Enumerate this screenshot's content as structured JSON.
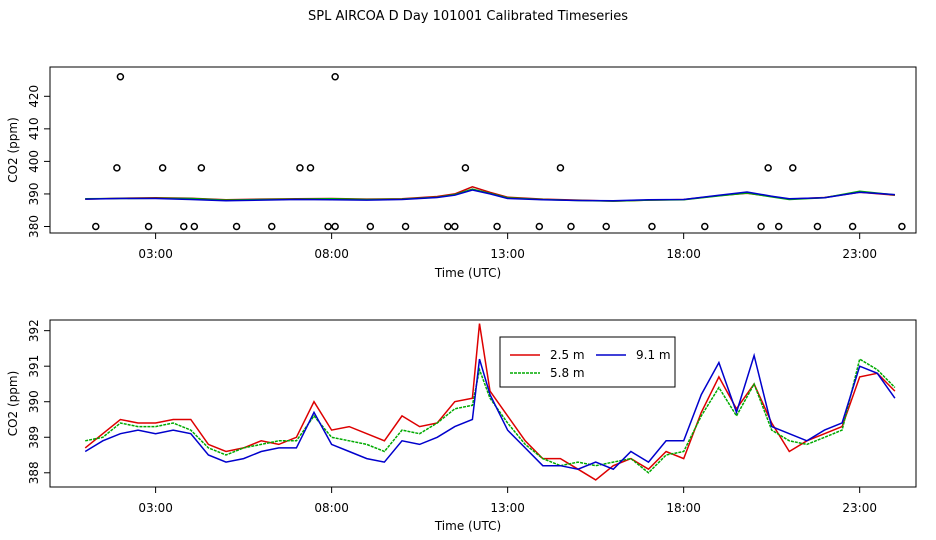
{
  "title": "SPL AIRCOA D  Day 101001  Calibrated Timeseries",
  "chart_data": [
    {
      "type": "scatter",
      "xlabel": "Time (UTC)",
      "ylabel": "CO2 (ppm)",
      "x_ticks": [
        "03:00",
        "08:00",
        "13:00",
        "18:00",
        "23:00"
      ],
      "y_ticks": [
        "380",
        "390",
        "400",
        "410",
        "420"
      ],
      "xlim": [
        0,
        24.6
      ],
      "ylim": [
        378,
        429
      ],
      "series": [
        {
          "color": "#cc0000",
          "x": [
            1,
            2,
            3,
            4,
            5,
            6,
            7,
            8,
            9,
            10,
            11,
            11.5,
            12,
            12.5,
            13,
            14,
            15,
            16,
            17,
            18,
            19,
            19.8,
            20.5,
            21,
            22,
            23,
            24
          ],
          "y": [
            388.4,
            388.7,
            388.8,
            388.7,
            388.2,
            388.4,
            388.5,
            388.6,
            388.4,
            388.5,
            389.2,
            390,
            392.2,
            390.5,
            389,
            388.4,
            388.1,
            387.8,
            388.1,
            388.3,
            389.5,
            390.2,
            389.2,
            388.4,
            388.9,
            390.5,
            389.6
          ]
        },
        {
          "color": "#00aa00",
          "x": [
            1,
            2,
            3,
            4,
            5,
            6,
            7,
            8,
            9,
            10,
            11,
            11.5,
            12,
            12.5,
            13,
            14,
            15,
            16,
            17,
            18,
            19,
            19.8,
            20.5,
            21,
            22,
            23,
            24
          ],
          "y": [
            388.5,
            388.6,
            388.7,
            388.6,
            388.1,
            388.3,
            388.4,
            388.5,
            388.3,
            388.4,
            389,
            389.8,
            391.5,
            390.2,
            388.8,
            388.3,
            388,
            387.8,
            388.1,
            388.2,
            389.4,
            390.3,
            389.1,
            388.3,
            388.8,
            390.8,
            389.7
          ]
        },
        {
          "color": "#0000cc",
          "x": [
            1,
            2,
            3,
            4,
            5,
            6,
            7,
            8,
            9,
            10,
            11,
            11.5,
            12,
            12.5,
            13,
            14,
            15,
            16,
            17,
            18,
            19,
            19.8,
            20.5,
            21,
            22,
            23,
            24
          ],
          "y": [
            388.4,
            388.6,
            388.6,
            388.3,
            387.9,
            388.1,
            388.3,
            388.2,
            388.1,
            388.3,
            388.9,
            389.6,
            391.2,
            390,
            388.6,
            388.2,
            388,
            387.9,
            388.2,
            388.3,
            389.6,
            390.6,
            389.3,
            388.5,
            388.8,
            390.5,
            389.8
          ]
        }
      ],
      "markers": {
        "x": [
          1.3,
          2.8,
          3.8,
          4.1,
          5.3,
          6.3,
          7.9,
          8.1,
          9.1,
          10.1,
          11.3,
          11.5,
          12.7,
          13.9,
          14.8,
          15.8,
          17.1,
          18.6,
          20.2,
          20.7,
          21.8,
          22.8,
          24.2,
          4.3,
          7.1,
          7.4,
          11.8,
          20.4,
          21.1,
          14.5,
          1.9,
          3.2,
          2.0,
          8.1
        ],
        "y": [
          380,
          380,
          380,
          380,
          380,
          380,
          380,
          380,
          380,
          380,
          380,
          380,
          380,
          380,
          380,
          380,
          380,
          380,
          380,
          380,
          380,
          380,
          380,
          398,
          398,
          398,
          398,
          398,
          398,
          398,
          398,
          398,
          426,
          426
        ]
      }
    },
    {
      "type": "line",
      "xlabel": "Time (UTC)",
      "ylabel": "CO2 (ppm)",
      "x_ticks": [
        "03:00",
        "08:00",
        "13:00",
        "18:00",
        "23:00"
      ],
      "y_ticks": [
        "388",
        "389",
        "390",
        "391",
        "392"
      ],
      "xlim": [
        0,
        24.6
      ],
      "ylim": [
        387.6,
        392.3
      ],
      "legend": "top-center",
      "series": [
        {
          "name": "2.5 m",
          "color": "#dd0000",
          "x": [
            1,
            1.5,
            2,
            2.5,
            3,
            3.5,
            4,
            4.5,
            5,
            5.5,
            6,
            6.5,
            7,
            7.5,
            8,
            8.5,
            9,
            9.5,
            10,
            10.5,
            11,
            11.5,
            12,
            12.2,
            12.5,
            13,
            13.5,
            14,
            14.5,
            15,
            15.5,
            16,
            16.5,
            17,
            17.5,
            18,
            18.5,
            19,
            19.5,
            20,
            20.5,
            21,
            21.5,
            22,
            22.5,
            23,
            23.5,
            24
          ],
          "y": [
            388.7,
            389.1,
            389.5,
            389.4,
            389.4,
            389.5,
            389.5,
            388.8,
            388.6,
            388.7,
            388.9,
            388.8,
            389,
            390,
            389.2,
            389.3,
            389.1,
            388.9,
            389.6,
            389.3,
            389.4,
            390,
            390.1,
            392.2,
            390.3,
            389.6,
            388.9,
            388.4,
            388.4,
            388.1,
            387.8,
            388.2,
            388.4,
            388.1,
            388.6,
            388.4,
            389.7,
            390.7,
            389.8,
            390.5,
            389.4,
            388.6,
            388.9,
            389.1,
            389.3,
            390.7,
            390.8,
            390.3
          ]
        },
        {
          "name": "5.8 m",
          "color": "#00aa00",
          "x": [
            1,
            1.5,
            2,
            2.5,
            3,
            3.5,
            4,
            4.5,
            5,
            5.5,
            6,
            6.5,
            7,
            7.5,
            8,
            8.5,
            9,
            9.5,
            10,
            10.5,
            11,
            11.5,
            12,
            12.2,
            12.5,
            13,
            13.5,
            14,
            14.5,
            15,
            15.5,
            16,
            16.5,
            17,
            17.5,
            18,
            18.5,
            19,
            19.5,
            20,
            20.5,
            21,
            21.5,
            22,
            22.5,
            23,
            23.5,
            24
          ],
          "y": [
            388.9,
            389,
            389.4,
            389.3,
            389.3,
            389.4,
            389.2,
            388.7,
            388.5,
            388.7,
            388.8,
            388.9,
            388.9,
            389.6,
            389,
            388.9,
            388.8,
            388.6,
            389.2,
            389.1,
            389.4,
            389.8,
            389.9,
            390.9,
            390.1,
            389.4,
            388.8,
            388.4,
            388.2,
            388.3,
            388.2,
            388.3,
            388.4,
            388,
            388.5,
            388.6,
            389.6,
            390.4,
            389.6,
            390.5,
            389.2,
            388.9,
            388.8,
            389,
            389.2,
            391.2,
            390.9,
            390.4
          ]
        },
        {
          "name": "9.1 m",
          "color": "#0000cc",
          "x": [
            1,
            1.5,
            2,
            2.5,
            3,
            3.5,
            4,
            4.5,
            5,
            5.5,
            6,
            6.5,
            7,
            7.5,
            8,
            8.5,
            9,
            9.5,
            10,
            10.5,
            11,
            11.5,
            12,
            12.2,
            12.5,
            13,
            13.5,
            14,
            14.5,
            15,
            15.5,
            16,
            16.5,
            17,
            17.5,
            18,
            18.5,
            19,
            19.5,
            20,
            20.5,
            21,
            21.5,
            22,
            22.5,
            23,
            23.5,
            24
          ],
          "y": [
            388.6,
            388.9,
            389.1,
            389.2,
            389.1,
            389.2,
            389.1,
            388.5,
            388.3,
            388.4,
            388.6,
            388.7,
            388.7,
            389.7,
            388.8,
            388.6,
            388.4,
            388.3,
            388.9,
            388.8,
            389.0,
            389.3,
            389.5,
            391.2,
            390.2,
            389.2,
            388.7,
            388.2,
            388.2,
            388.1,
            388.3,
            388.1,
            388.6,
            388.3,
            388.9,
            388.9,
            390.2,
            391.1,
            389.7,
            391.3,
            389.3,
            389.1,
            388.9,
            389.2,
            389.4,
            391,
            390.8,
            390.1
          ]
        }
      ]
    }
  ]
}
